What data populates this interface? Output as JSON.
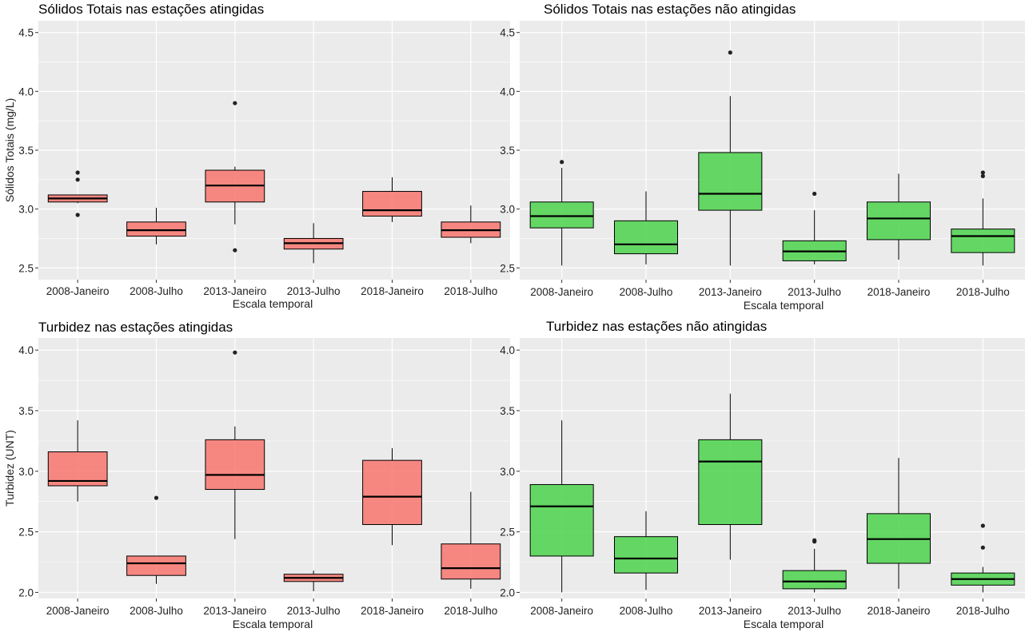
{
  "colors": {
    "panel_bg": "#EBEBEB",
    "grid": "#FFFFFF",
    "affected_fill": "#F8766D",
    "unaffected_fill": "#4CD24C",
    "line": "#000000"
  },
  "chart_data": [
    {
      "type": "boxplot",
      "title": "Sólidos Totais nas estações atingidas",
      "xlabel": "Escala temporal",
      "ylabel": "Sólidos Totais (mg/L)",
      "ylim": [
        2.4,
        4.6
      ],
      "yticks": [
        2.5,
        3.0,
        3.5,
        4.0,
        4.5
      ],
      "ytick_labels": [
        "2.5",
        "3.0",
        "3.5",
        "4.0",
        "4.5"
      ],
      "fill": "#F8766D",
      "categories": [
        "2008-Janeiro",
        "2008-Julho",
        "2013-Janeiro",
        "2013-Julho",
        "2018-Janeiro",
        "2018-Julho"
      ],
      "boxes": [
        {
          "lw": 3.05,
          "q1": 3.06,
          "med": 3.09,
          "q3": 3.12,
          "uw": 3.12,
          "outliers": [
            3.31,
            3.25,
            2.95
          ]
        },
        {
          "lw": 2.7,
          "q1": 2.77,
          "med": 2.82,
          "q3": 2.89,
          "uw": 3.01,
          "outliers": []
        },
        {
          "lw": 2.87,
          "q1": 3.06,
          "med": 3.2,
          "q3": 3.33,
          "uw": 3.36,
          "outliers": [
            3.9,
            2.65
          ]
        },
        {
          "lw": 2.54,
          "q1": 2.66,
          "med": 2.71,
          "q3": 2.75,
          "uw": 2.88,
          "outliers": []
        },
        {
          "lw": 2.89,
          "q1": 2.94,
          "med": 2.99,
          "q3": 3.15,
          "uw": 3.27,
          "outliers": []
        },
        {
          "lw": 2.71,
          "q1": 2.76,
          "med": 2.82,
          "q3": 2.89,
          "uw": 3.03,
          "outliers": []
        }
      ]
    },
    {
      "type": "boxplot",
      "title": "Sólidos Totais nas estações não atingidas",
      "xlabel": "Escala temporal",
      "ylabel": "",
      "ylim": [
        2.4,
        4.6
      ],
      "yticks": [
        2.5,
        3.0,
        3.5,
        4.0,
        4.5
      ],
      "ytick_labels": [
        "2.5",
        "3.0",
        "3.5",
        "4.0",
        "4.5"
      ],
      "fill": "#4CD24C",
      "categories": [
        "2008-Janeiro",
        "2008-Julho",
        "2013-Janeiro",
        "2013-Julho",
        "2018-Janeiro",
        "2018-Julho"
      ],
      "boxes": [
        {
          "lw": 2.52,
          "q1": 2.84,
          "med": 2.94,
          "q3": 3.06,
          "uw": 3.35,
          "outliers": [
            3.4
          ]
        },
        {
          "lw": 2.53,
          "q1": 2.62,
          "med": 2.7,
          "q3": 2.9,
          "uw": 3.15,
          "outliers": []
        },
        {
          "lw": 2.52,
          "q1": 2.99,
          "med": 3.13,
          "q3": 3.48,
          "uw": 3.96,
          "outliers": [
            4.33
          ]
        },
        {
          "lw": 2.53,
          "q1": 2.56,
          "med": 2.64,
          "q3": 2.73,
          "uw": 2.99,
          "outliers": [
            3.13
          ]
        },
        {
          "lw": 2.57,
          "q1": 2.74,
          "med": 2.92,
          "q3": 3.06,
          "uw": 3.3,
          "outliers": []
        },
        {
          "lw": 2.52,
          "q1": 2.63,
          "med": 2.77,
          "q3": 2.83,
          "uw": 3.09,
          "outliers": [
            3.31,
            3.28
          ]
        }
      ]
    },
    {
      "type": "boxplot",
      "title": "Turbidez nas estações atingidas",
      "xlabel": "Escala temporal",
      "ylabel": "Turbidez (UNT)",
      "ylim": [
        1.95,
        4.1
      ],
      "yticks": [
        2.0,
        2.5,
        3.0,
        3.5,
        4.0
      ],
      "ytick_labels": [
        "2.0",
        "2.5",
        "3.0",
        "3.5",
        "4.0"
      ],
      "fill": "#F8766D",
      "categories": [
        "2008-Janeiro",
        "2008-Julho",
        "2013-Janeiro",
        "2013-Julho",
        "2018-Janeiro",
        "2018-Julho"
      ],
      "boxes": [
        {
          "lw": 2.75,
          "q1": 2.88,
          "med": 2.92,
          "q3": 3.16,
          "uw": 3.42,
          "outliers": []
        },
        {
          "lw": 2.07,
          "q1": 2.14,
          "med": 2.24,
          "q3": 2.3,
          "uw": 2.3,
          "outliers": [
            2.78
          ]
        },
        {
          "lw": 2.44,
          "q1": 2.85,
          "med": 2.97,
          "q3": 3.26,
          "uw": 3.37,
          "outliers": [
            3.98
          ]
        },
        {
          "lw": 2.01,
          "q1": 2.09,
          "med": 2.12,
          "q3": 2.15,
          "uw": 2.18,
          "outliers": []
        },
        {
          "lw": 2.39,
          "q1": 2.56,
          "med": 2.79,
          "q3": 3.09,
          "uw": 3.19,
          "outliers": []
        },
        {
          "lw": 2.03,
          "q1": 2.11,
          "med": 2.2,
          "q3": 2.4,
          "uw": 2.83,
          "outliers": []
        }
      ]
    },
    {
      "type": "boxplot",
      "title": "Turbidez nas estações não atingidas",
      "xlabel": "Escala temporal",
      "ylabel": "",
      "ylim": [
        1.95,
        4.1
      ],
      "yticks": [
        2.0,
        2.5,
        3.0,
        3.5,
        4.0
      ],
      "ytick_labels": [
        "2.0",
        "2.5",
        "3.0",
        "3.5",
        "4.0"
      ],
      "fill": "#4CD24C",
      "categories": [
        "2008-Janeiro",
        "2008-Julho",
        "2013-Janeiro",
        "2013-Julho",
        "2018-Janeiro",
        "2018-Julho"
      ],
      "boxes": [
        {
          "lw": 2.0,
          "q1": 2.3,
          "med": 2.71,
          "q3": 2.89,
          "uw": 3.42,
          "outliers": []
        },
        {
          "lw": 2.02,
          "q1": 2.16,
          "med": 2.28,
          "q3": 2.46,
          "uw": 2.67,
          "outliers": []
        },
        {
          "lw": 2.27,
          "q1": 2.56,
          "med": 3.08,
          "q3": 3.26,
          "uw": 3.64,
          "outliers": []
        },
        {
          "lw": 2.0,
          "q1": 2.03,
          "med": 2.09,
          "q3": 2.18,
          "uw": 2.36,
          "outliers": [
            2.43,
            2.42
          ]
        },
        {
          "lw": 2.03,
          "q1": 2.24,
          "med": 2.44,
          "q3": 2.65,
          "uw": 3.11,
          "outliers": []
        },
        {
          "lw": 2.0,
          "q1": 2.06,
          "med": 2.11,
          "q3": 2.16,
          "uw": 2.21,
          "outliers": [
            2.55,
            2.37
          ]
        }
      ]
    }
  ]
}
